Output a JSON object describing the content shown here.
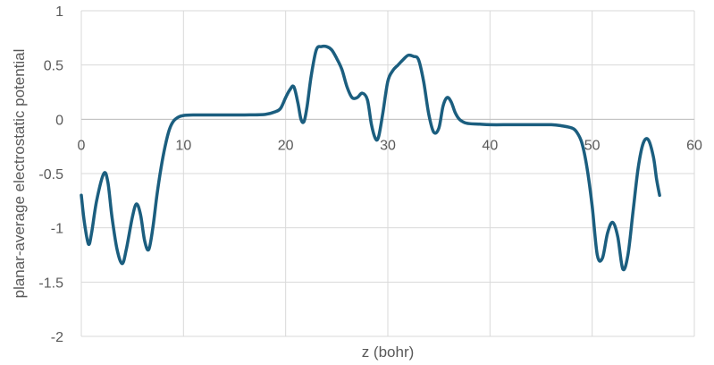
{
  "chart_data": {
    "type": "line",
    "title": "",
    "xlabel": "z (bohr)",
    "ylabel": "planar-average electrostatic potential",
    "xlim": [
      0,
      60
    ],
    "ylim": [
      -2,
      1
    ],
    "x_ticks": [
      "0",
      "10",
      "20",
      "30",
      "40",
      "50",
      "60"
    ],
    "y_ticks": [
      "1",
      "0.5",
      "0",
      "-0.5",
      "-1",
      "-1.5",
      "-2"
    ],
    "grid": true,
    "legend": "none",
    "series": [
      {
        "color": "#1b5e7f",
        "x": [
          0,
          0.3,
          0.7,
          1.0,
          1.5,
          2.2,
          2.6,
          3.0,
          3.5,
          4.0,
          4.4,
          5.0,
          5.4,
          5.8,
          6.2,
          6.6,
          7.0,
          7.4,
          7.8,
          8.2,
          8.6,
          9.0,
          9.5,
          10.0,
          11.0,
          12.0,
          14.0,
          16.0,
          18.0,
          19.0,
          19.5,
          20.0,
          20.4,
          20.8,
          21.2,
          21.5,
          21.8,
          22.1,
          22.5,
          23.0,
          23.5,
          24.0,
          24.5,
          25.0,
          25.5,
          26.0,
          26.5,
          27.0,
          27.5,
          28.0,
          28.4,
          28.8,
          29.1,
          29.5,
          30.0,
          30.5,
          31.0,
          31.5,
          32.0,
          32.5,
          33.0,
          33.5,
          34.0,
          34.5,
          35.0,
          35.4,
          35.8,
          36.2,
          36.6,
          37.0,
          37.5,
          38.0,
          39.0,
          40.0,
          42.0,
          44.0,
          46.0,
          47.0,
          48.0,
          48.5,
          49.0,
          49.5,
          50.0,
          50.5,
          51.0,
          51.5,
          52.0,
          52.5,
          53.0,
          53.5,
          54.0,
          54.5,
          55.0,
          55.5,
          56.0,
          56.3,
          56.6
        ],
        "y": [
          -0.7,
          -0.95,
          -1.15,
          -1.05,
          -0.75,
          -0.5,
          -0.58,
          -0.9,
          -1.2,
          -1.33,
          -1.2,
          -0.9,
          -0.78,
          -0.88,
          -1.12,
          -1.2,
          -1.0,
          -0.7,
          -0.45,
          -0.25,
          -0.1,
          -0.02,
          0.02,
          0.035,
          0.04,
          0.04,
          0.04,
          0.04,
          0.045,
          0.07,
          0.1,
          0.2,
          0.27,
          0.3,
          0.15,
          0.0,
          -0.02,
          0.12,
          0.4,
          0.64,
          0.67,
          0.67,
          0.64,
          0.56,
          0.46,
          0.3,
          0.2,
          0.2,
          0.24,
          0.18,
          -0.05,
          -0.18,
          -0.16,
          0.05,
          0.35,
          0.45,
          0.5,
          0.55,
          0.59,
          0.58,
          0.55,
          0.35,
          0.05,
          -0.12,
          -0.08,
          0.12,
          0.2,
          0.16,
          0.06,
          0.0,
          -0.03,
          -0.04,
          -0.045,
          -0.05,
          -0.05,
          -0.05,
          -0.05,
          -0.06,
          -0.08,
          -0.12,
          -0.22,
          -0.45,
          -0.8,
          -1.25,
          -1.28,
          -1.05,
          -0.95,
          -1.08,
          -1.38,
          -1.25,
          -0.85,
          -0.45,
          -0.22,
          -0.19,
          -0.35,
          -0.55,
          -0.7
        ]
      }
    ]
  }
}
